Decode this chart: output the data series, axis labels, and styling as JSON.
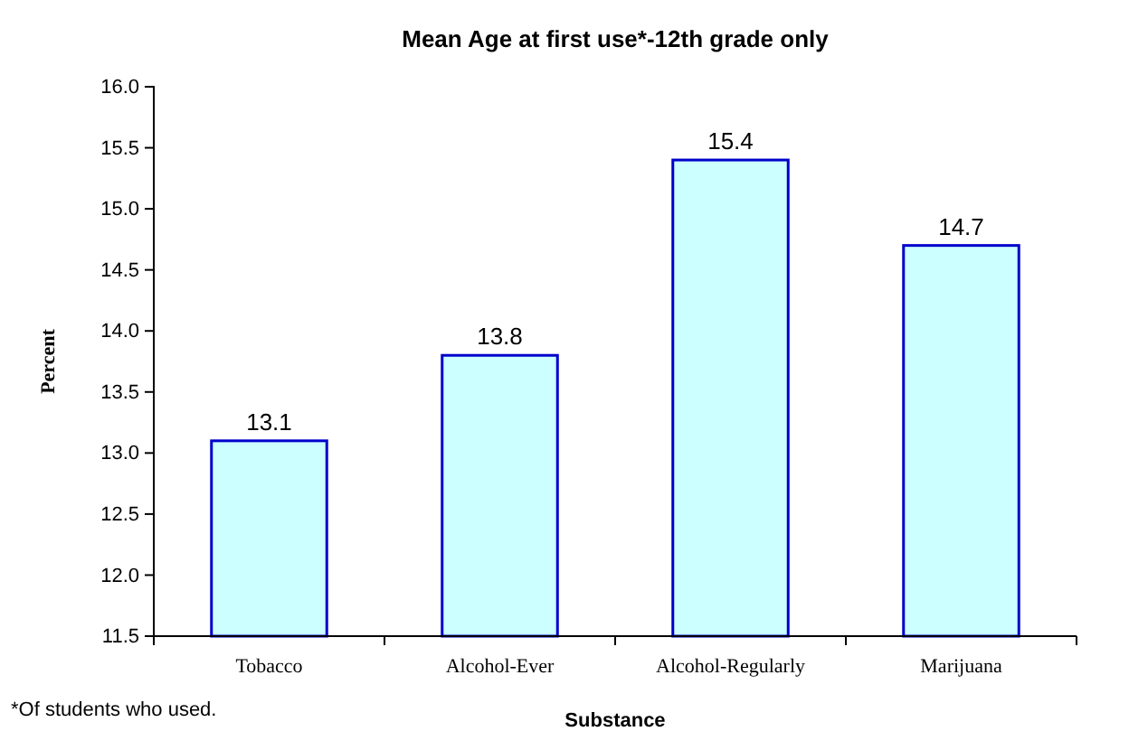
{
  "chart_data": {
    "type": "bar",
    "title": "Mean Age at first use*-12th grade only",
    "xlabel": "Substance",
    "ylabel": "Percent",
    "categories": [
      "Tobacco",
      "Alcohol-Ever",
      "Alcohol-Regularly",
      "Marijuana"
    ],
    "values": [
      13.1,
      13.8,
      15.4,
      14.7
    ],
    "color": "#ccffff",
    "data_labels": true,
    "ylim": [
      11.5,
      16.0
    ],
    "yticks": [
      {
        "value": 11.5,
        "label": "11.5"
      },
      {
        "value": 12,
        "label": "12.0"
      },
      {
        "value": 12.5,
        "label": "12.5"
      },
      {
        "value": 13,
        "label": "13.0"
      },
      {
        "value": 13.5,
        "label": "13.5"
      },
      {
        "value": 14,
        "label": "14.0"
      },
      {
        "value": 14.5,
        "label": "14.5"
      },
      {
        "value": 15,
        "label": "15.0"
      },
      {
        "value": 15.5,
        "label": "15.5"
      },
      {
        "value": 16,
        "label": "16.0"
      }
    ],
    "grid": false,
    "annotations": [
      "*Of students who used."
    ]
  }
}
